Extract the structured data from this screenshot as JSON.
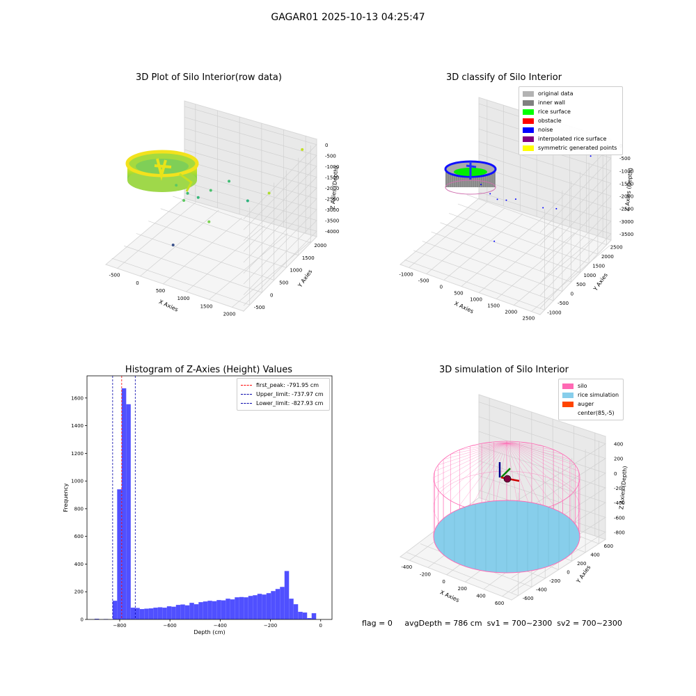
{
  "suptitle": "GAGAR01 2025-10-13 04:25:47",
  "chart_data": [
    {
      "type": "scatter",
      "title": "3D Plot of Silo Interior(row data)",
      "xlabel": "X Axies",
      "ylabel": "Y Axies",
      "zlabel": "Z Axies (Depth)",
      "xticks": [
        "-500",
        "0",
        "500",
        "1000",
        "1500",
        "2000"
      ],
      "yticks": [
        "-500",
        "0",
        "500",
        "1000",
        "1500",
        "2000"
      ],
      "zticks": [
        "0",
        "-500",
        "-1000",
        "-1500",
        "-2000",
        "-2500",
        "-3000",
        "-3500",
        "-4000"
      ],
      "colormap": "viridis",
      "outliers": [
        {
          "x": 350,
          "y": 150,
          "z": -900
        },
        {
          "x": 500,
          "y": 300,
          "z": -1300
        },
        {
          "x": 650,
          "y": 420,
          "z": -1500
        },
        {
          "x": 750,
          "y": 700,
          "z": -1400
        },
        {
          "x": 450,
          "y": 250,
          "z": -1600
        },
        {
          "x": 900,
          "y": 1100,
          "z": -1300
        },
        {
          "x": 1500,
          "y": 1500,
          "z": -1800
        },
        {
          "x": 1000,
          "y": 1600,
          "z": -2600
        },
        {
          "x": 600,
          "y": 900,
          "z": -3100
        },
        {
          "x": 200,
          "y": 300,
          "z": -3800
        },
        {
          "x": 1900,
          "y": 2000,
          "z": -100
        }
      ]
    },
    {
      "type": "scatter",
      "title": "3D classify of Silo Interior",
      "xlabel": "X Axies",
      "ylabel": "Y Axies",
      "zlabel": "Z Axies (Depth)",
      "xticks": [
        "-1000",
        "-500",
        "0",
        "500",
        "1000",
        "1500",
        "2000",
        "2500"
      ],
      "yticks": [
        "-1000",
        "-500",
        "0",
        "500",
        "1000",
        "1500",
        "2000",
        "2500"
      ],
      "zticks": [
        "0",
        "-500",
        "-1000",
        "-1500",
        "-2000",
        "-2500",
        "-3000",
        "-3500"
      ],
      "legend": [
        {
          "label": "original data",
          "color": "#b3b3b3"
        },
        {
          "label": "inner wall",
          "color": "#808080"
        },
        {
          "label": "rice surface",
          "color": "#00ff00"
        },
        {
          "label": "obstacle",
          "color": "#ff0000"
        },
        {
          "label": "noise",
          "color": "#0000ff"
        },
        {
          "label": "interpolated rice surface",
          "color": "#800080"
        },
        {
          "label": "symmetric generated points",
          "color": "#ffff00"
        }
      ],
      "noise_points": [
        {
          "x": 300,
          "y": 100,
          "z": -900
        },
        {
          "x": 450,
          "y": 300,
          "z": -1300
        },
        {
          "x": 600,
          "y": 400,
          "z": -1500
        },
        {
          "x": 800,
          "y": 500,
          "z": -1500
        },
        {
          "x": 900,
          "y": 800,
          "z": -1600
        },
        {
          "x": 1400,
          "y": 1300,
          "z": -2000
        },
        {
          "x": 400,
          "y": 600,
          "z": -3300
        },
        {
          "x": 2200,
          "y": 2300,
          "z": -300
        },
        {
          "x": 1500,
          "y": 1800,
          "z": -2300
        }
      ]
    },
    {
      "type": "bar",
      "title": "Histogram of Z-Axies (Height) Values",
      "xlabel": "Depth (cm)",
      "ylabel": "Frequency",
      "xlim": [
        -930,
        45
      ],
      "ylim": [
        0,
        1760
      ],
      "xticks": [
        -800,
        -600,
        -400,
        -200,
        0
      ],
      "yticks": [
        0,
        200,
        400,
        600,
        800,
        1000,
        1200,
        1400,
        1600
      ],
      "bar_color": "#5050ff",
      "bins": [
        {
          "x0": -900,
          "x1": -882,
          "count": 5
        },
        {
          "x0": -864,
          "x1": -846,
          "count": 3
        },
        {
          "x0": -828,
          "x1": -810,
          "count": 135
        },
        {
          "x0": -810,
          "x1": -792,
          "count": 940
        },
        {
          "x0": -792,
          "x1": -774,
          "count": 1670
        },
        {
          "x0": -774,
          "x1": -756,
          "count": 1555
        },
        {
          "x0": -756,
          "x1": -738,
          "count": 85
        },
        {
          "x0": -738,
          "x1": -720,
          "count": 83
        },
        {
          "x0": -720,
          "x1": -702,
          "count": 75
        },
        {
          "x0": -702,
          "x1": -684,
          "count": 78
        },
        {
          "x0": -684,
          "x1": -666,
          "count": 80
        },
        {
          "x0": -666,
          "x1": -648,
          "count": 85
        },
        {
          "x0": -648,
          "x1": -630,
          "count": 88
        },
        {
          "x0": -630,
          "x1": -612,
          "count": 85
        },
        {
          "x0": -612,
          "x1": -594,
          "count": 95
        },
        {
          "x0": -594,
          "x1": -576,
          "count": 92
        },
        {
          "x0": -576,
          "x1": -558,
          "count": 105
        },
        {
          "x0": -558,
          "x1": -540,
          "count": 108
        },
        {
          "x0": -540,
          "x1": -522,
          "count": 102
        },
        {
          "x0": -522,
          "x1": -504,
          "count": 120
        },
        {
          "x0": -504,
          "x1": -486,
          "count": 110
        },
        {
          "x0": -486,
          "x1": -468,
          "count": 125
        },
        {
          "x0": -468,
          "x1": -450,
          "count": 130
        },
        {
          "x0": -450,
          "x1": -432,
          "count": 135
        },
        {
          "x0": -432,
          "x1": -414,
          "count": 132
        },
        {
          "x0": -414,
          "x1": -396,
          "count": 140
        },
        {
          "x0": -396,
          "x1": -378,
          "count": 138
        },
        {
          "x0": -378,
          "x1": -360,
          "count": 150
        },
        {
          "x0": -360,
          "x1": -342,
          "count": 145
        },
        {
          "x0": -342,
          "x1": -324,
          "count": 160
        },
        {
          "x0": -324,
          "x1": -306,
          "count": 162
        },
        {
          "x0": -306,
          "x1": -288,
          "count": 160
        },
        {
          "x0": -288,
          "x1": -270,
          "count": 170
        },
        {
          "x0": -270,
          "x1": -252,
          "count": 175
        },
        {
          "x0": -252,
          "x1": -234,
          "count": 185
        },
        {
          "x0": -234,
          "x1": -216,
          "count": 180
        },
        {
          "x0": -216,
          "x1": -198,
          "count": 190
        },
        {
          "x0": -198,
          "x1": -180,
          "count": 205
        },
        {
          "x0": -180,
          "x1": -162,
          "count": 220
        },
        {
          "x0": -162,
          "x1": -144,
          "count": 235
        },
        {
          "x0": -144,
          "x1": -126,
          "count": 350
        },
        {
          "x0": -126,
          "x1": -108,
          "count": 150
        },
        {
          "x0": -108,
          "x1": -90,
          "count": 110
        },
        {
          "x0": -90,
          "x1": -72,
          "count": 55
        },
        {
          "x0": -72,
          "x1": -54,
          "count": 50
        },
        {
          "x0": -54,
          "x1": -36,
          "count": 10
        },
        {
          "x0": -36,
          "x1": -18,
          "count": 45
        }
      ],
      "vlines": [
        {
          "label": "first_peak: -791.95 cm",
          "x": -791.95,
          "color": "#ff0000"
        },
        {
          "label": "Upper_limit: -737.97 cm",
          "x": -737.97,
          "color": "#0000aa"
        },
        {
          "label": "Lower_limit: -827.93 cm",
          "x": -827.93,
          "color": "#0000aa"
        }
      ]
    },
    {
      "type": "scatter",
      "title": "3D simulation of Silo Interior",
      "xlabel": "X Axies",
      "ylabel": "Y Axies",
      "zlabel": "Z Axies (Depth)",
      "xticks": [
        "-400",
        "-200",
        "0",
        "200",
        "400",
        "600"
      ],
      "yticks": [
        "-600",
        "-400",
        "-200",
        "0",
        "200",
        "400",
        "600"
      ],
      "zticks": [
        "400",
        "200",
        "0",
        "-200",
        "-400",
        "-600",
        "-800"
      ],
      "legend": [
        {
          "label": "silo",
          "color": "#ff69b4"
        },
        {
          "label": "rice simulation",
          "color": "#87ceeb"
        },
        {
          "label": "auger",
          "color": "#ff4500"
        },
        {
          "label": "center(85,-5)",
          "color": "#ffffff"
        }
      ]
    }
  ],
  "status": {
    "flag": "flag = 0",
    "avg_depth": "avgDepth = 786 cm",
    "sv1": "sv1 = 700~2300",
    "sv2": "sv2 = 700~2300"
  }
}
